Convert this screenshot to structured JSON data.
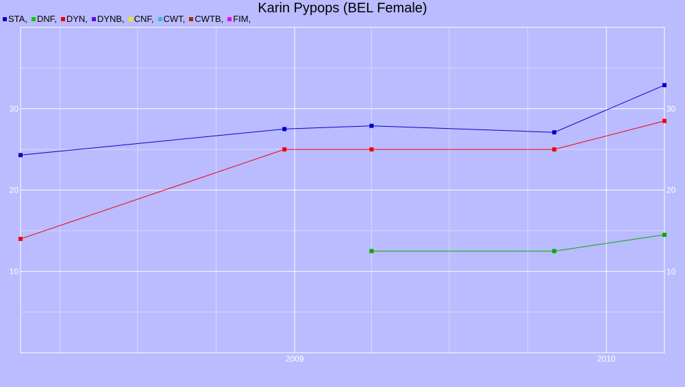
{
  "chart_data": {
    "type": "line",
    "title": "Karin Pypops (BEL Female)",
    "xlabel": "",
    "ylabel": "",
    "x_range": [
      "2008-02-15",
      "2010-03-10"
    ],
    "ylim": [
      0,
      40
    ],
    "y_ticks": [
      10,
      20,
      30
    ],
    "x_ticks": [
      {
        "date": "2009-01-01",
        "label": "2009"
      },
      {
        "date": "2010-01-01",
        "label": "2010"
      }
    ],
    "grid": true,
    "legend_position": "top-left",
    "legend": [
      {
        "label": "STA,",
        "color": "#0000cc"
      },
      {
        "label": "DNF,",
        "color": "#00cc00"
      },
      {
        "label": "DYN,",
        "color": "#ee0000"
      },
      {
        "label": "DYNB,",
        "color": "#6600ee"
      },
      {
        "label": "CNF,",
        "color": "#eeee00"
      },
      {
        "label": "CWT,",
        "color": "#33bbdd"
      },
      {
        "label": "CWTB,",
        "color": "#993300"
      },
      {
        "label": "FIM,",
        "color": "#ee00ee"
      }
    ],
    "series": [
      {
        "name": "STA",
        "color": "#0000cc",
        "points": [
          {
            "x": "2008-02-15",
            "y": 24.3
          },
          {
            "x": "2008-12-20",
            "y": 27.5
          },
          {
            "x": "2009-04-01",
            "y": 27.9
          },
          {
            "x": "2009-11-01",
            "y": 27.1
          },
          {
            "x": "2010-03-10",
            "y": 32.9
          }
        ]
      },
      {
        "name": "DNF",
        "color": "#00aa00",
        "points": [
          {
            "x": "2009-04-01",
            "y": 12.5
          },
          {
            "x": "2009-11-01",
            "y": 12.5
          },
          {
            "x": "2010-03-10",
            "y": 14.5
          }
        ]
      },
      {
        "name": "DYN",
        "color": "#ee0000",
        "points": [
          {
            "x": "2008-02-15",
            "y": 14.0
          },
          {
            "x": "2008-12-20",
            "y": 25.0
          },
          {
            "x": "2009-04-01",
            "y": 25.0
          },
          {
            "x": "2009-11-01",
            "y": 25.0
          },
          {
            "x": "2010-03-10",
            "y": 28.5
          }
        ]
      }
    ]
  }
}
